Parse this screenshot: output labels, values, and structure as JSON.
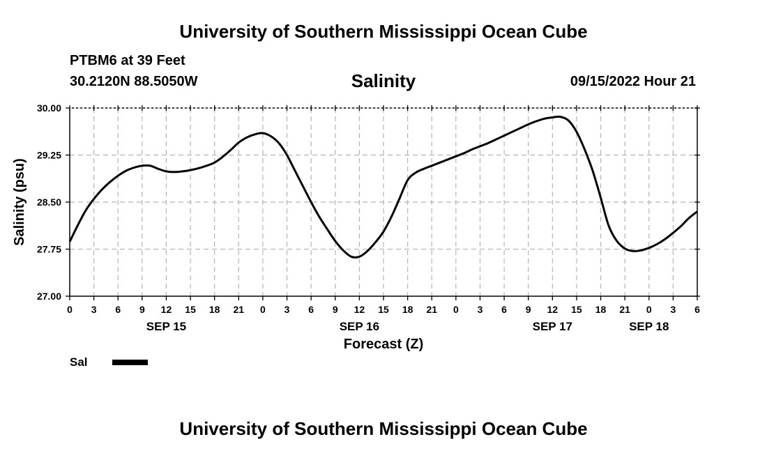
{
  "header": {
    "title": "University of Southern Mississippi Ocean Cube",
    "station": "PTBM6 at 39 Feet",
    "coordinates": "30.2120N  88.5050W",
    "datetime": "09/15/2022 Hour 21"
  },
  "footer": {
    "title": "University of Southern Mississippi Ocean Cube"
  },
  "chart_data": {
    "type": "line",
    "title": "Salinity",
    "xlabel": "Forecast (Z)",
    "ylabel": "Salinity (psu)",
    "ylim": [
      27.0,
      30.0
    ],
    "xlim_hours": [
      0,
      78
    ],
    "yticks": [
      "27.00",
      "27.75",
      "28.50",
      "29.25",
      "30.00"
    ],
    "xtick_labels": [
      "0",
      "3",
      "6",
      "9",
      "12",
      "15",
      "18",
      "21",
      "0",
      "3",
      "6",
      "9",
      "12",
      "15",
      "18",
      "21",
      "0",
      "3",
      "6",
      "9",
      "12",
      "15",
      "18",
      "21",
      "0",
      "3",
      "6"
    ],
    "date_labels": [
      {
        "label": "SEP 15",
        "hour": 12
      },
      {
        "label": "SEP 16",
        "hour": 36
      },
      {
        "label": "SEP 17",
        "hour": 60
      },
      {
        "label": "SEP 18",
        "hour": 72
      }
    ],
    "grid": true,
    "legend": "bottom-left",
    "series": [
      {
        "name": "Sal",
        "color": "#000000",
        "x": [
          0,
          1,
          2,
          3,
          4,
          5,
          6,
          7,
          8,
          9,
          10,
          11,
          12,
          13,
          14,
          15,
          16,
          17,
          18,
          19,
          20,
          21,
          22,
          23,
          24,
          25,
          26,
          27,
          28,
          29,
          30,
          31,
          32,
          33,
          34,
          35,
          36,
          37,
          38,
          39,
          40,
          41,
          42,
          43,
          44,
          45,
          46,
          47,
          48,
          49,
          50,
          51,
          52,
          53,
          54,
          55,
          56,
          57,
          58,
          59,
          60,
          61,
          62,
          63,
          64,
          65,
          66,
          67,
          68,
          69,
          70,
          71,
          72,
          73,
          74,
          75,
          76,
          77,
          78
        ],
        "values": [
          27.87,
          28.13,
          28.37,
          28.55,
          28.7,
          28.82,
          28.92,
          29.0,
          29.05,
          29.08,
          29.08,
          29.03,
          28.99,
          28.98,
          28.99,
          29.01,
          29.04,
          29.08,
          29.13,
          29.22,
          29.33,
          29.45,
          29.53,
          29.58,
          29.6,
          29.55,
          29.44,
          29.25,
          29.0,
          28.75,
          28.5,
          28.27,
          28.07,
          27.88,
          27.73,
          27.63,
          27.63,
          27.72,
          27.86,
          28.03,
          28.27,
          28.56,
          28.85,
          28.97,
          29.03,
          29.08,
          29.13,
          29.18,
          29.23,
          29.28,
          29.34,
          29.39,
          29.44,
          29.5,
          29.56,
          29.62,
          29.68,
          29.74,
          29.79,
          29.83,
          29.85,
          29.86,
          29.8,
          29.62,
          29.34,
          29.0,
          28.57,
          28.12,
          27.88,
          27.76,
          27.72,
          27.73,
          27.77,
          27.83,
          27.91,
          28.01,
          28.12,
          28.25,
          28.35
        ]
      }
    ]
  }
}
